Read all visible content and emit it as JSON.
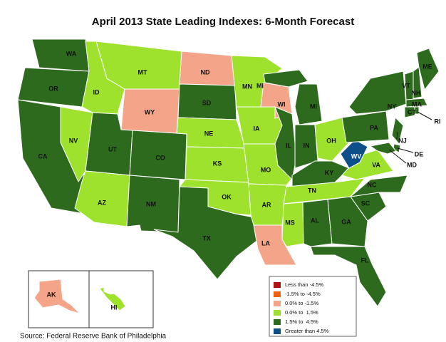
{
  "title": "April 2013 State Leading Indexes: 6-Month Forecast",
  "states": [
    {
      "label": "WA",
      "color": "#2e6a1e"
    },
    {
      "label": "OR",
      "color": "#2e6a1e"
    },
    {
      "label": "CA",
      "color": "#2e6a1e"
    },
    {
      "label": "NV",
      "color": "#9ee22e"
    },
    {
      "label": "ID",
      "color": "#9ee22e"
    },
    {
      "label": "MT",
      "color": "#9ee22e"
    },
    {
      "label": "WY",
      "color": "#f4a488"
    },
    {
      "label": "UT",
      "color": "#2e6a1e"
    },
    {
      "label": "CO",
      "color": "#2e6a1e"
    },
    {
      "label": "AZ",
      "color": "#9ee22e"
    },
    {
      "label": "NM",
      "color": "#2e6a1e"
    },
    {
      "label": "ND",
      "color": "#f4a488"
    },
    {
      "label": "SD",
      "color": "#2e6a1e"
    },
    {
      "label": "NE",
      "color": "#9ee22e"
    },
    {
      "label": "KS",
      "color": "#9ee22e"
    },
    {
      "label": "OK",
      "color": "#9ee22e"
    },
    {
      "label": "TX",
      "color": "#2e6a1e"
    },
    {
      "label": "MN",
      "color": "#9ee22e"
    },
    {
      "label": "IA",
      "color": "#9ee22e"
    },
    {
      "label": "MO",
      "color": "#9ee22e"
    },
    {
      "label": "AR",
      "color": "#9ee22e"
    },
    {
      "label": "LA",
      "color": "#f4a488"
    },
    {
      "label": "WI",
      "color": "#f4a488"
    },
    {
      "label": "IL",
      "color": "#2e6a1e"
    },
    {
      "label": "MI",
      "color": "#2e6a1e"
    },
    {
      "label": "MI",
      "color": "#2e6a1e"
    },
    {
      "label": "IN",
      "color": "#2e6a1e"
    },
    {
      "label": "OH",
      "color": "#9ee22e"
    },
    {
      "label": "KY",
      "color": "#2e6a1e"
    },
    {
      "label": "TN",
      "color": "#9ee22e"
    },
    {
      "label": "MS",
      "color": "#9ee22e"
    },
    {
      "label": "AL",
      "color": "#2e6a1e"
    },
    {
      "label": "GA",
      "color": "#2e6a1e"
    },
    {
      "label": "FL",
      "color": "#2e6a1e"
    },
    {
      "label": "SC",
      "color": "#2e6a1e"
    },
    {
      "label": "NC",
      "color": "#2e6a1e"
    },
    {
      "label": "VA",
      "color": "#9ee22e"
    },
    {
      "label": "WV",
      "color": "#0d5089"
    },
    {
      "label": "PA",
      "color": "#2e6a1e"
    },
    {
      "label": "NY",
      "color": "#2e6a1e"
    },
    {
      "label": "NJ",
      "color": "#2e6a1e"
    },
    {
      "label": "DE",
      "color": "#2e6a1e"
    },
    {
      "label": "MD",
      "color": "#2e6a1e"
    },
    {
      "label": "VT",
      "color": "#2e6a1e"
    },
    {
      "label": "NH",
      "color": "#2e6a1e"
    },
    {
      "label": "ME",
      "color": "#2e6a1e"
    },
    {
      "label": "MA",
      "color": "#2e6a1e"
    },
    {
      "label": "CT",
      "color": "#2e6a1e"
    },
    {
      "label": "RI",
      "color": "#2e6a1e"
    },
    {
      "label": "AK",
      "color": "#f4a488"
    },
    {
      "label": "HI",
      "color": "#9ee22e"
    }
  ],
  "legend": {
    "items": [
      {
        "label": "Less than -4.5%",
        "color": "#b01010"
      },
      {
        "label": "-1.5% to -4.5%",
        "color": "#f06010"
      },
      {
        "label": "0.0% to -1.5%",
        "color": "#f4a488"
      },
      {
        "label": "0.0% to  1.5%",
        "color": "#9ee22e"
      },
      {
        "label": "1.5% to  4.5%",
        "color": "#2e6a1e"
      },
      {
        "label": "Greater than 4.5%",
        "color": "#0d5089"
      }
    ]
  },
  "source": "Source: Federal Reserve Bank of Philadelphia"
}
